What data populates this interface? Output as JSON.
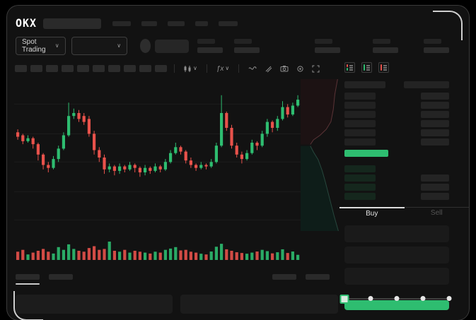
{
  "theme": {
    "green": "#2ebd70",
    "red": "#e8524b",
    "window_bg": "#121212",
    "grid": "#1d1d1d",
    "last_price_green": "#2ebd70",
    "buy_button_green": "#2ebd70"
  },
  "topbar": {
    "brand": "OKX",
    "nav_placeholders": [
      26,
      22,
      24,
      18,
      27
    ]
  },
  "subbar": {
    "market_selector_label": "Spot Trading",
    "chevron": "∨",
    "stat_placeholder_count": 5
  },
  "chart_toolbar": {
    "interval_placeholders": [
      17,
      17,
      17,
      17,
      17,
      17,
      17,
      17,
      17,
      17
    ],
    "indicators_label": "ƒx",
    "icons": [
      "chart-type-icon",
      "chevron-down-icon",
      "indicators-icon",
      "chevron-down-icon",
      "wave-icon",
      "draw-icon",
      "camera-icon",
      "settings-icon",
      "fullscreen-icon"
    ]
  },
  "chart_data": {
    "type": "candlestick",
    "title": "",
    "ylim": [
      0,
      100
    ],
    "grid": true,
    "gridline_levels": [
      86,
      66,
      47,
      27,
      8
    ],
    "candles_ochl_note": "each candle is [open, close, high, low] in relative price units 0-100",
    "candles": [
      [
        67,
        64,
        69,
        62
      ],
      [
        65,
        61,
        66,
        59
      ],
      [
        61,
        63,
        65,
        60
      ],
      [
        63,
        59,
        64,
        56
      ],
      [
        59,
        52,
        60,
        48
      ],
      [
        52,
        45,
        53,
        42
      ],
      [
        45,
        43,
        47,
        40
      ],
      [
        43,
        49,
        51,
        42
      ],
      [
        49,
        56,
        58,
        47
      ],
      [
        56,
        65,
        67,
        55
      ],
      [
        65,
        78,
        87,
        64
      ],
      [
        78,
        80,
        83,
        76
      ],
      [
        80,
        76,
        82,
        74
      ],
      [
        78,
        74,
        80,
        72
      ],
      [
        76,
        66,
        78,
        64
      ],
      [
        66,
        55,
        68,
        52
      ],
      [
        55,
        50,
        57,
        47
      ],
      [
        50,
        42,
        52,
        39
      ],
      [
        42,
        44,
        46,
        40
      ],
      [
        44,
        41,
        45,
        38
      ],
      [
        41,
        44,
        46,
        39
      ],
      [
        44,
        42,
        45,
        40
      ],
      [
        42,
        45,
        47,
        41
      ],
      [
        45,
        43,
        46,
        40
      ],
      [
        43,
        40,
        44,
        37
      ],
      [
        40,
        43,
        45,
        38
      ],
      [
        43,
        41,
        44,
        39
      ],
      [
        41,
        44,
        46,
        40
      ],
      [
        44,
        42,
        45,
        40
      ],
      [
        42,
        47,
        49,
        41
      ],
      [
        47,
        53,
        55,
        46
      ],
      [
        53,
        57,
        60,
        52
      ],
      [
        57,
        54,
        58,
        52
      ],
      [
        54,
        48,
        55,
        46
      ],
      [
        48,
        45,
        50,
        43
      ],
      [
        45,
        43,
        46,
        41
      ],
      [
        43,
        45,
        47,
        42
      ],
      [
        45,
        44,
        46,
        42
      ],
      [
        44,
        47,
        49,
        43
      ],
      [
        47,
        58,
        60,
        46
      ],
      [
        58,
        80,
        92,
        57
      ],
      [
        80,
        70,
        81,
        68
      ],
      [
        70,
        58,
        72,
        56
      ],
      [
        58,
        52,
        60,
        50
      ],
      [
        52,
        49,
        54,
        46
      ],
      [
        49,
        53,
        55,
        48
      ],
      [
        53,
        60,
        62,
        52
      ],
      [
        60,
        58,
        61,
        55
      ],
      [
        58,
        66,
        68,
        57
      ],
      [
        66,
        74,
        76,
        64
      ],
      [
        74,
        70,
        75,
        67
      ],
      [
        70,
        76,
        78,
        68
      ],
      [
        76,
        84,
        88,
        75
      ],
      [
        84,
        79,
        86,
        77
      ],
      [
        79,
        85,
        87,
        78
      ],
      [
        85,
        89,
        92,
        84
      ]
    ],
    "volume": [
      45,
      55,
      30,
      40,
      50,
      60,
      45,
      35,
      70,
      55,
      85,
      60,
      50,
      45,
      65,
      75,
      55,
      60,
      100,
      50,
      45,
      55,
      40,
      50,
      45,
      40,
      35,
      45,
      40,
      55,
      62,
      70,
      52,
      55,
      45,
      40,
      34,
      30,
      46,
      72,
      88,
      58,
      50,
      42,
      38,
      34,
      40,
      46,
      55,
      48,
      36,
      42,
      58,
      38,
      46,
      28
    ]
  },
  "depth": {
    "ask_fill": "#1c1213",
    "ask_line": "#5a3336",
    "bid_fill": "#0e1d19",
    "bid_line": "#27473d",
    "ask_curve": [
      [
        0.95,
        0
      ],
      [
        0.88,
        0.1
      ],
      [
        0.84,
        0.2
      ],
      [
        0.78,
        0.28
      ],
      [
        0.66,
        0.33
      ],
      [
        0.5,
        0.37
      ],
      [
        0.33,
        0.4
      ],
      [
        0.25,
        0.43
      ]
    ],
    "bid_curve": [
      [
        0.25,
        0.44
      ],
      [
        0.33,
        0.48
      ],
      [
        0.45,
        0.53
      ],
      [
        0.55,
        0.6
      ],
      [
        0.64,
        0.68
      ],
      [
        0.74,
        0.78
      ],
      [
        0.86,
        0.9
      ],
      [
        0.97,
        1.0
      ]
    ]
  },
  "orderbook": {
    "view_icons": [
      "book-both-icon",
      "book-bids-icon",
      "book-asks-icon"
    ],
    "header_placeholders": {
      "left_width": 58,
      "right_width": 64
    },
    "asks": [
      {
        "right": true
      },
      {
        "right": true
      },
      {
        "right": true
      },
      {
        "right": true
      },
      {
        "right": true
      },
      {
        "right": true
      }
    ],
    "bids": [
      {
        "right": false
      },
      {
        "right": true
      },
      {
        "right": true
      },
      {
        "right": true
      }
    ]
  },
  "trade_panel": {
    "buy_tab": "Buy",
    "sell_tab": "Sell",
    "field_count": 3,
    "slider_steps": 5,
    "slider_position": 0
  },
  "bottom": {
    "tab_placeholders": [
      34,
      34
    ],
    "right_placeholders": [
      32,
      32
    ]
  }
}
